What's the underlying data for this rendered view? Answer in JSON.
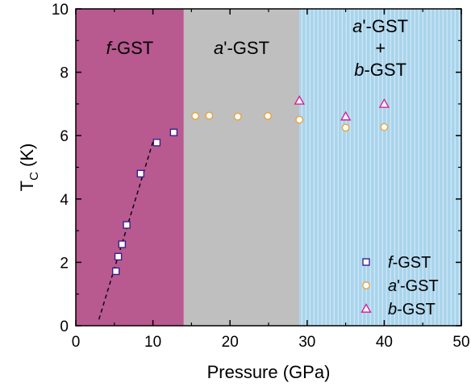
{
  "chart_data": {
    "type": "scatter",
    "xlabel": "Pressure (GPa)",
    "ylabel": {
      "main": "T",
      "sub": "C",
      "unit": " (K)"
    },
    "xlim": [
      0,
      50
    ],
    "ylim": [
      0,
      10
    ],
    "xticks": [
      0,
      10,
      20,
      30,
      40,
      50
    ],
    "yticks": [
      0,
      2,
      4,
      6,
      8,
      10
    ],
    "grid": false,
    "legend_position": "bottom-right",
    "regions": [
      {
        "x_from": 0,
        "x_to": 14,
        "color": "#b85990",
        "lines": [
          {
            "italic": "f",
            "rest": "-GST"
          }
        ]
      },
      {
        "x_from": 14,
        "x_to": 29,
        "color": "#bfbfbf",
        "lines": [
          {
            "italic": "a",
            "rest": "'-GST"
          }
        ]
      },
      {
        "x_from": 29,
        "x_to": 50,
        "color": "#a9d4ec",
        "stripe_color": "#dceef8",
        "lines": [
          {
            "italic": "a",
            "rest": "'-GST"
          },
          {
            "italic": "",
            "rest": "+"
          },
          {
            "italic": "b",
            "rest": "-GST"
          }
        ]
      }
    ],
    "series": [
      {
        "name": {
          "italic": "f",
          "rest": "-GST"
        },
        "marker": "square",
        "color": "#3a1f8a",
        "x": [
          5.2,
          5.5,
          6.0,
          6.6,
          8.4,
          10.5,
          12.7
        ],
        "y": [
          1.72,
          2.18,
          2.57,
          3.18,
          4.8,
          5.78,
          6.1
        ]
      },
      {
        "name": {
          "italic": "a",
          "rest": "'-GST"
        },
        "marker": "circle",
        "color": "#e8a33a",
        "x": [
          15.5,
          17.3,
          21.0,
          24.9,
          29.0,
          35.0,
          40.0
        ],
        "y": [
          6.62,
          6.63,
          6.6,
          6.62,
          6.5,
          6.25,
          6.27
        ]
      },
      {
        "name": {
          "italic": "b",
          "rest": "-GST"
        },
        "marker": "triangle",
        "color": "#d6209a",
        "x": [
          29.0,
          35.0,
          40.0
        ],
        "y": [
          7.1,
          6.6,
          7.0
        ]
      }
    ],
    "fit_line": {
      "style": "dashed",
      "x": [
        3.0,
        10.0
      ],
      "y": [
        0.2,
        5.8
      ]
    }
  }
}
